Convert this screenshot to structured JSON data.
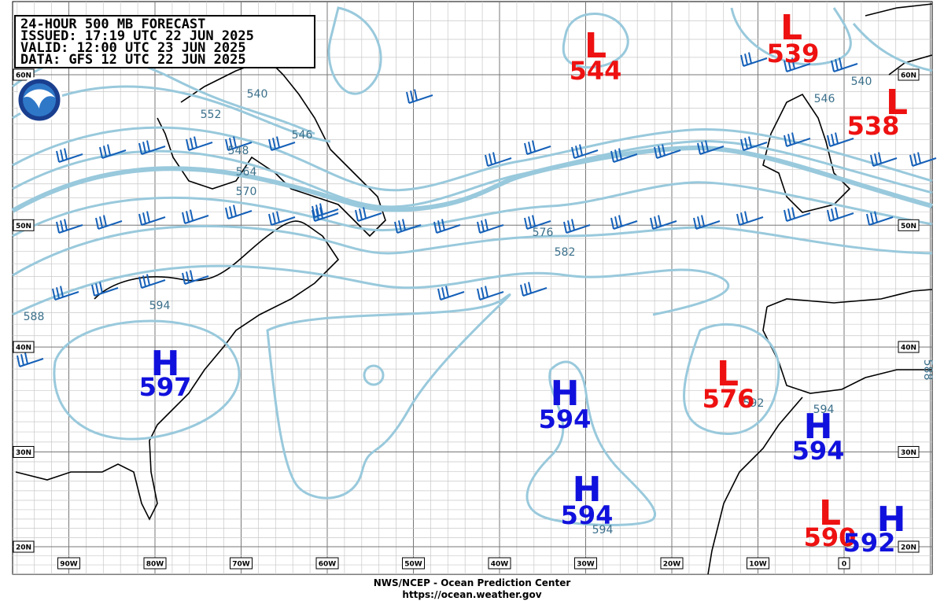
{
  "header": {
    "lines": [
      "24-HOUR 500 MB FORECAST",
      "ISSUED: 17:19 UTC 22 JUN 2025",
      "VALID:  12:00 UTC 23 JUN 2025",
      "DATA:  GFS 12 UTC 22 JUN 2025"
    ]
  },
  "lat_labels": [
    "60N",
    "50N",
    "40N",
    "30N",
    "20N"
  ],
  "lon_labels": [
    "90W",
    "80W",
    "70W",
    "60W",
    "50W",
    "40W",
    "30W",
    "20W",
    "10W",
    "0"
  ],
  "centers": [
    {
      "type": "L",
      "value": "544"
    },
    {
      "type": "L",
      "value": "539"
    },
    {
      "type": "L",
      "value": "538"
    },
    {
      "type": "H",
      "value": "597"
    },
    {
      "type": "H",
      "value": "594"
    },
    {
      "type": "H",
      "value": "594"
    },
    {
      "type": "L",
      "value": "576"
    },
    {
      "type": "H",
      "value": "594"
    },
    {
      "type": "L",
      "value": "590"
    },
    {
      "type": "H",
      "value": "592"
    }
  ],
  "contour_labels": [
    "552",
    "540",
    "546",
    "548",
    "564",
    "570",
    "576",
    "582",
    "588",
    "594",
    "546",
    "540",
    "594",
    "592",
    "594",
    "588"
  ],
  "footer": {
    "lines": [
      "NWS/NCEP - Ocean Prediction Center",
      "https://ocean.weather.gov"
    ]
  }
}
